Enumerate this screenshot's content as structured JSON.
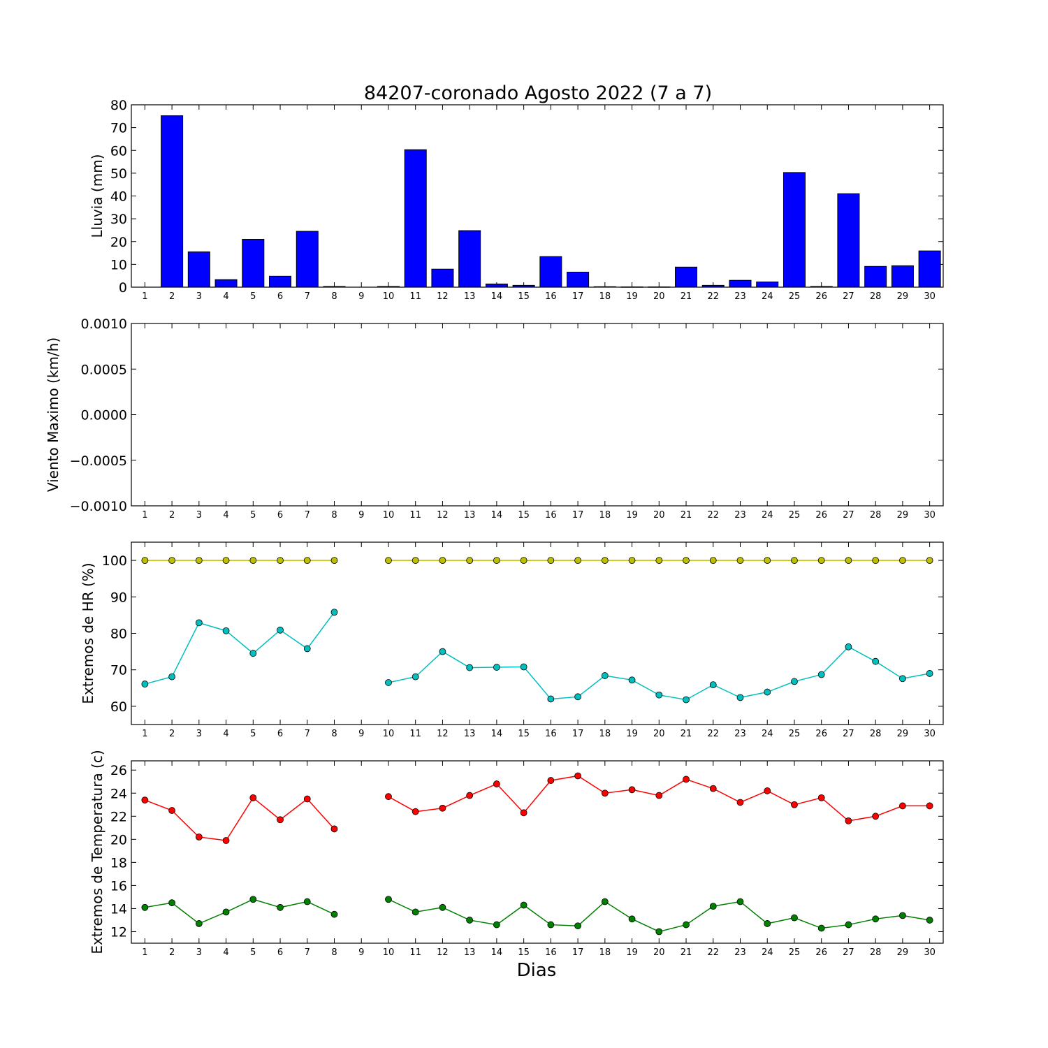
{
  "title": "84207-coronado Agosto 2022  (7 a 7)",
  "xlabel": "Dias",
  "days": [
    1,
    2,
    3,
    4,
    5,
    6,
    7,
    8,
    9,
    10,
    11,
    12,
    13,
    14,
    15,
    16,
    17,
    18,
    19,
    20,
    21,
    22,
    23,
    24,
    25,
    26,
    27,
    28,
    29,
    30
  ],
  "colors": {
    "rain": "#0000ff",
    "hr_max": "#bfbf00",
    "hr_min": "#00bfbf",
    "temp_max": "#ff0000",
    "temp_min": "#008000"
  },
  "chart_data": [
    {
      "type": "bar",
      "ylabel": "Lluvia (mm)",
      "ylim": [
        0,
        80
      ],
      "yticks": [
        "0",
        "10",
        "20",
        "30",
        "40",
        "50",
        "60",
        "70",
        "80"
      ],
      "categories": [
        1,
        2,
        3,
        4,
        5,
        6,
        7,
        8,
        9,
        10,
        11,
        12,
        13,
        14,
        15,
        16,
        17,
        18,
        19,
        20,
        21,
        22,
        23,
        24,
        25,
        26,
        27,
        28,
        29,
        30
      ],
      "values": [
        0,
        75.2,
        15.5,
        3.3,
        21.0,
        4.8,
        24.5,
        0.3,
        0,
        0.3,
        60.3,
        7.9,
        24.8,
        1.4,
        0.8,
        13.4,
        6.6,
        0.2,
        0.1,
        0.1,
        8.8,
        0.8,
        3.0,
        2.3,
        50.3,
        0.3,
        41.0,
        9.1,
        9.4,
        15.9
      ]
    },
    {
      "type": "line",
      "ylabel": "Viento Maximo (km/h)",
      "ylim": [
        -0.001,
        0.001
      ],
      "yticks": [
        "−0.0010",
        "−0.0005",
        "0.0000",
        "0.0005",
        "0.0010"
      ],
      "series": []
    },
    {
      "type": "line",
      "ylabel": "Extremos de HR (%)",
      "ylim": [
        55,
        105
      ],
      "yticks": [
        "60",
        "70",
        "80",
        "90",
        "100"
      ],
      "x": [
        1,
        2,
        3,
        4,
        5,
        6,
        7,
        8,
        9,
        10,
        11,
        12,
        13,
        14,
        15,
        16,
        17,
        18,
        19,
        20,
        21,
        22,
        23,
        24,
        25,
        26,
        27,
        28,
        29,
        30
      ],
      "series": [
        {
          "values": [
            100,
            100,
            100,
            100,
            100,
            100,
            100,
            100,
            null,
            100,
            100,
            100,
            100,
            100,
            100,
            100,
            100,
            100,
            100,
            100,
            100,
            100,
            100,
            100,
            100,
            100,
            100,
            100,
            100,
            100
          ]
        },
        {
          "values": [
            66.1,
            68.1,
            82.9,
            80.7,
            74.5,
            80.9,
            75.8,
            85.8,
            null,
            66.5,
            68.1,
            75.0,
            70.6,
            70.7,
            70.8,
            62.0,
            62.6,
            68.4,
            67.2,
            63.1,
            61.8,
            65.9,
            62.4,
            63.9,
            66.8,
            68.7,
            76.3,
            72.3,
            67.6,
            69.0
          ]
        }
      ]
    },
    {
      "type": "line",
      "ylabel": "Extremos de Temperatura (c)",
      "ylim": [
        11,
        26.8
      ],
      "yticks": [
        "12",
        "14",
        "16",
        "18",
        "20",
        "22",
        "24",
        "26"
      ],
      "x": [
        1,
        2,
        3,
        4,
        5,
        6,
        7,
        8,
        9,
        10,
        11,
        12,
        13,
        14,
        15,
        16,
        17,
        18,
        19,
        20,
        21,
        22,
        23,
        24,
        25,
        26,
        27,
        28,
        29,
        30
      ],
      "series": [
        {
          "values": [
            23.4,
            22.5,
            20.2,
            19.9,
            23.6,
            21.7,
            23.5,
            20.9,
            null,
            23.7,
            22.4,
            22.7,
            23.8,
            24.8,
            22.3,
            25.1,
            25.5,
            24.0,
            24.3,
            23.8,
            25.2,
            24.4,
            23.2,
            24.2,
            23.0,
            23.6,
            21.6,
            22.0,
            22.9,
            22.9
          ]
        },
        {
          "values": [
            14.1,
            14.5,
            12.7,
            13.7,
            14.8,
            14.1,
            14.6,
            13.5,
            null,
            14.8,
            13.7,
            14.1,
            13.0,
            12.6,
            14.3,
            12.6,
            12.5,
            14.6,
            13.1,
            12.0,
            12.6,
            14.2,
            14.6,
            12.7,
            13.2,
            12.3,
            12.6,
            13.1,
            13.4,
            13.0
          ]
        }
      ]
    }
  ]
}
